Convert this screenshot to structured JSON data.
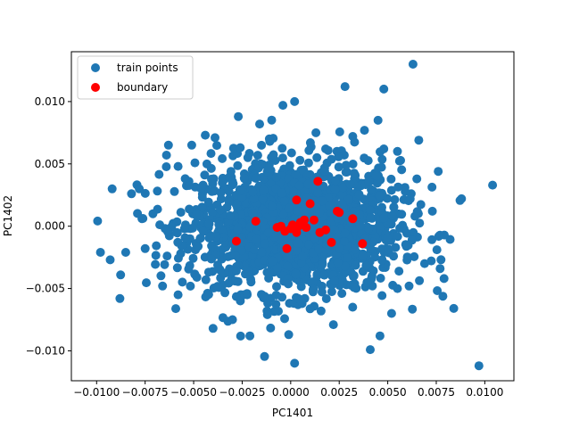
{
  "chart_data": {
    "type": "scatter",
    "xlabel": "PC1401",
    "ylabel": "PC1402",
    "xlim": [
      -0.0113,
      0.0115
    ],
    "ylim": [
      -0.0124,
      0.014
    ],
    "xticks": [
      -0.01,
      -0.0075,
      -0.005,
      -0.0025,
      0.0,
      0.0025,
      0.005,
      0.0075,
      0.01
    ],
    "xtick_labels": [
      "−0.0100",
      "−0.0075",
      "−0.0050",
      "−0.0025",
      "0.0000",
      "0.0025",
      "0.0050",
      "0.0075",
      "0.0100"
    ],
    "yticks": [
      -0.01,
      -0.005,
      0.0,
      0.005,
      0.01
    ],
    "ytick_labels": [
      "−0.010",
      "−0.005",
      "0.000",
      "0.005",
      "0.010"
    ],
    "grid": false,
    "legend_position": "top-left",
    "series": [
      {
        "name": "train points",
        "color": "#1f77b4",
        "x": [
          0.0063,
          0.0048,
          0.0045,
          0.0028,
          0.0002,
          -0.0004,
          -0.0039,
          -0.0027,
          0.0097,
          0.0084,
          0.0104,
          0.0077,
          0.0065,
          -0.0098,
          -0.0093,
          -0.0085,
          -0.0088,
          -0.0075,
          -0.0066,
          -0.0058,
          -0.0082,
          -0.0071,
          -0.0063,
          0.0088,
          0.0076,
          0.0079,
          0.0069,
          -0.0016,
          0.0002,
          -0.0001,
          0.0041,
          0.0046,
          0.0052,
          0.0066,
          0.0055,
          0.0013,
          -0.0011,
          -0.0026,
          -0.0044,
          -0.0051,
          -0.0064,
          -0.0078,
          0.0055,
          0.0061,
          0.0022,
          -0.0021,
          -0.004,
          -0.0058,
          0.0073,
          0.0064,
          0.0048,
          0.0038,
          0.0032,
          -0.003,
          -0.0012
        ],
        "y": [
          0.013,
          0.011,
          0.0085,
          0.0112,
          0.01,
          0.0097,
          0.0071,
          0.0088,
          -0.0112,
          -0.0066,
          0.0033,
          -0.0034,
          0.0038,
          -0.0021,
          -0.0027,
          -0.0021,
          -0.0058,
          -0.0018,
          -0.0048,
          -0.0055,
          0.0026,
          0.001,
          0.0065,
          0.0022,
          0.0044,
          -0.0042,
          -0.003,
          0.0082,
          -0.011,
          -0.0087,
          -0.0099,
          -0.0088,
          -0.007,
          0.0069,
          0.006,
          0.0075,
          0.007,
          0.0063,
          0.0073,
          0.0065,
          0.0057,
          0.003,
          -0.005,
          -0.0048,
          -0.0079,
          -0.0088,
          -0.0082,
          0.0048,
          0.0012,
          0.0008,
          0.0062,
          0.0077,
          0.0072,
          -0.0075,
          -0.0071
        ]
      },
      {
        "name": "boundary",
        "color": "#ff0000",
        "x": [
          0.0014,
          0.0003,
          0.001,
          -0.0018,
          -0.0028,
          0.0007,
          0.0004,
          -0.0007,
          -0.0003,
          0.0,
          0.0003,
          0.0012,
          0.0015,
          0.0018,
          0.0024,
          0.0025,
          0.0032,
          0.0037,
          0.0021,
          -0.0002,
          0.0008,
          0.0005,
          -0.0005,
          0.0001
        ],
        "y": [
          0.0036,
          0.0021,
          0.0018,
          0.0004,
          -0.0012,
          0.0005,
          0.0,
          -0.0001,
          -0.0004,
          -0.0002,
          -0.0005,
          0.0005,
          -0.0005,
          -0.0003,
          0.0012,
          0.0011,
          0.0006,
          -0.0014,
          -0.0013,
          -0.0018,
          -0.0001,
          0.0003,
          0.0,
          0.0001
        ]
      }
    ]
  }
}
